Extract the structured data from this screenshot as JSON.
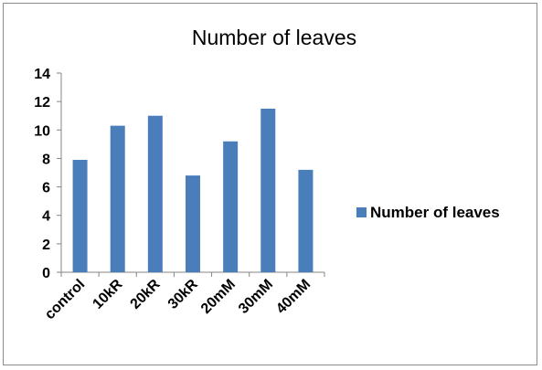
{
  "chart_data": {
    "type": "bar",
    "title": "Number of leaves",
    "categories": [
      "control",
      "10kR",
      "20kR",
      "30kR",
      "20mM",
      "30mM",
      "40mM"
    ],
    "series": [
      {
        "name": "Number of leaves",
        "values": [
          7.9,
          10.3,
          11.0,
          6.8,
          9.2,
          11.5,
          7.2
        ],
        "color": "#4a7ebb"
      }
    ],
    "y_ticks": [
      "0",
      "2",
      "4",
      "6",
      "8",
      "10",
      "12",
      "14"
    ],
    "ylim": [
      0,
      14
    ],
    "grid": false,
    "legend_position": "right"
  }
}
